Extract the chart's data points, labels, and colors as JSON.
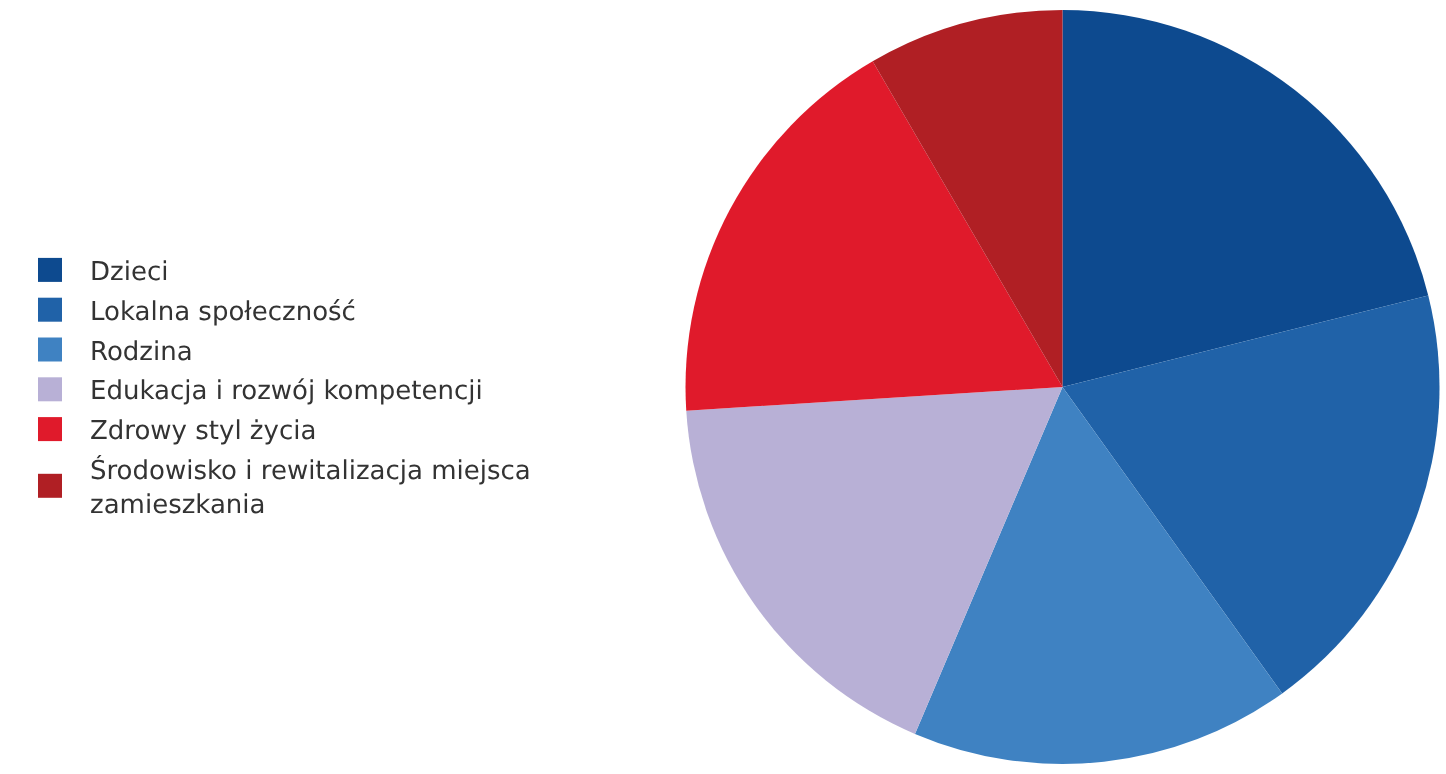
{
  "chart_data": {
    "type": "pie",
    "categories": [
      "Dzieci",
      "Lokalna społeczność",
      "Rodzina",
      "Edukacja i rozwój kompetencji",
      "Zdrowy styl życia",
      "Środowisko i rewitalizacja miejsca zamieszkania"
    ],
    "values": [
      21.1,
      19.0,
      16.3,
      17.6,
      17.6,
      8.4
    ],
    "colors": [
      "#0d4a8f",
      "#2062a8",
      "#3f82c2",
      "#b8b0d6",
      "#e01a2b",
      "#b01f24"
    ],
    "legend": "left"
  }
}
